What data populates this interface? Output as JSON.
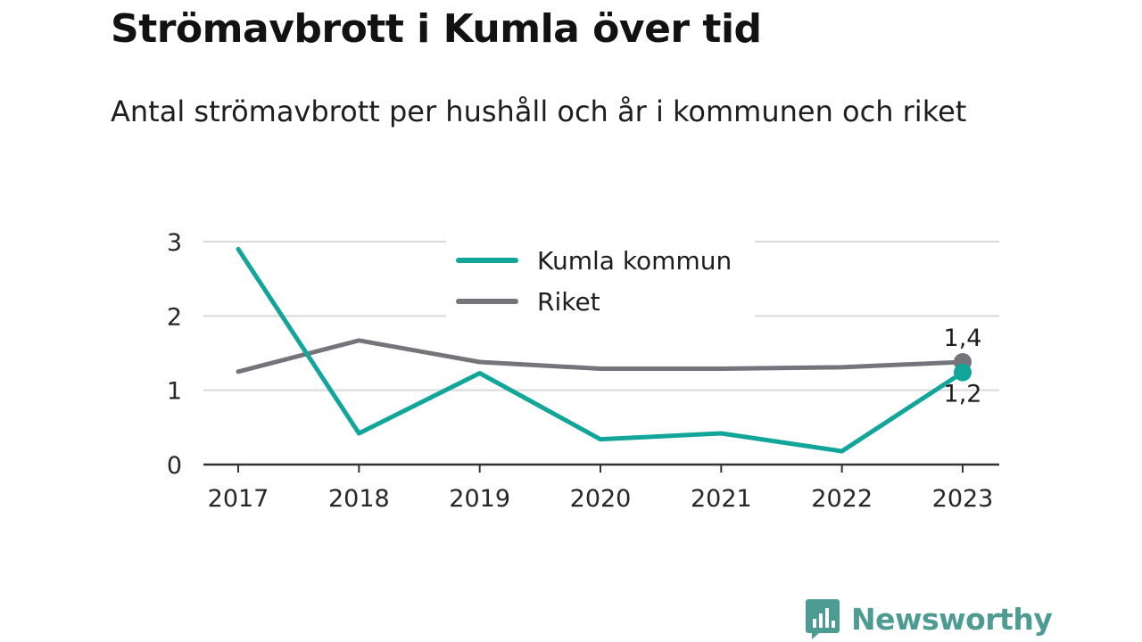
{
  "title": "Strömavbrott i Kumla över tid",
  "subtitle": "Antal strömavbrott per hushåll och år i kommunen och riket",
  "brand": "Newsworthy",
  "colors": {
    "kumla": "#12a59a",
    "riket": "#75747b",
    "grid": "#d9d9d9",
    "axis": "#333333"
  },
  "chart_data": {
    "type": "line",
    "x": [
      "2017",
      "2018",
      "2019",
      "2020",
      "2021",
      "2022",
      "2023"
    ],
    "ylim": [
      0,
      3
    ],
    "yticks": [
      0,
      1,
      2,
      3
    ],
    "grid": true,
    "legend_position": "top-center",
    "series": [
      {
        "name": "Kumla kommun",
        "color": "#12a59a",
        "values": [
          2.9,
          0.42,
          1.23,
          0.34,
          0.42,
          0.18,
          1.24
        ],
        "end_label": "1,2"
      },
      {
        "name": "Riket",
        "color": "#75747b",
        "values": [
          1.25,
          1.67,
          1.38,
          1.29,
          1.29,
          1.31,
          1.38
        ],
        "end_label": "1,4"
      }
    ]
  }
}
